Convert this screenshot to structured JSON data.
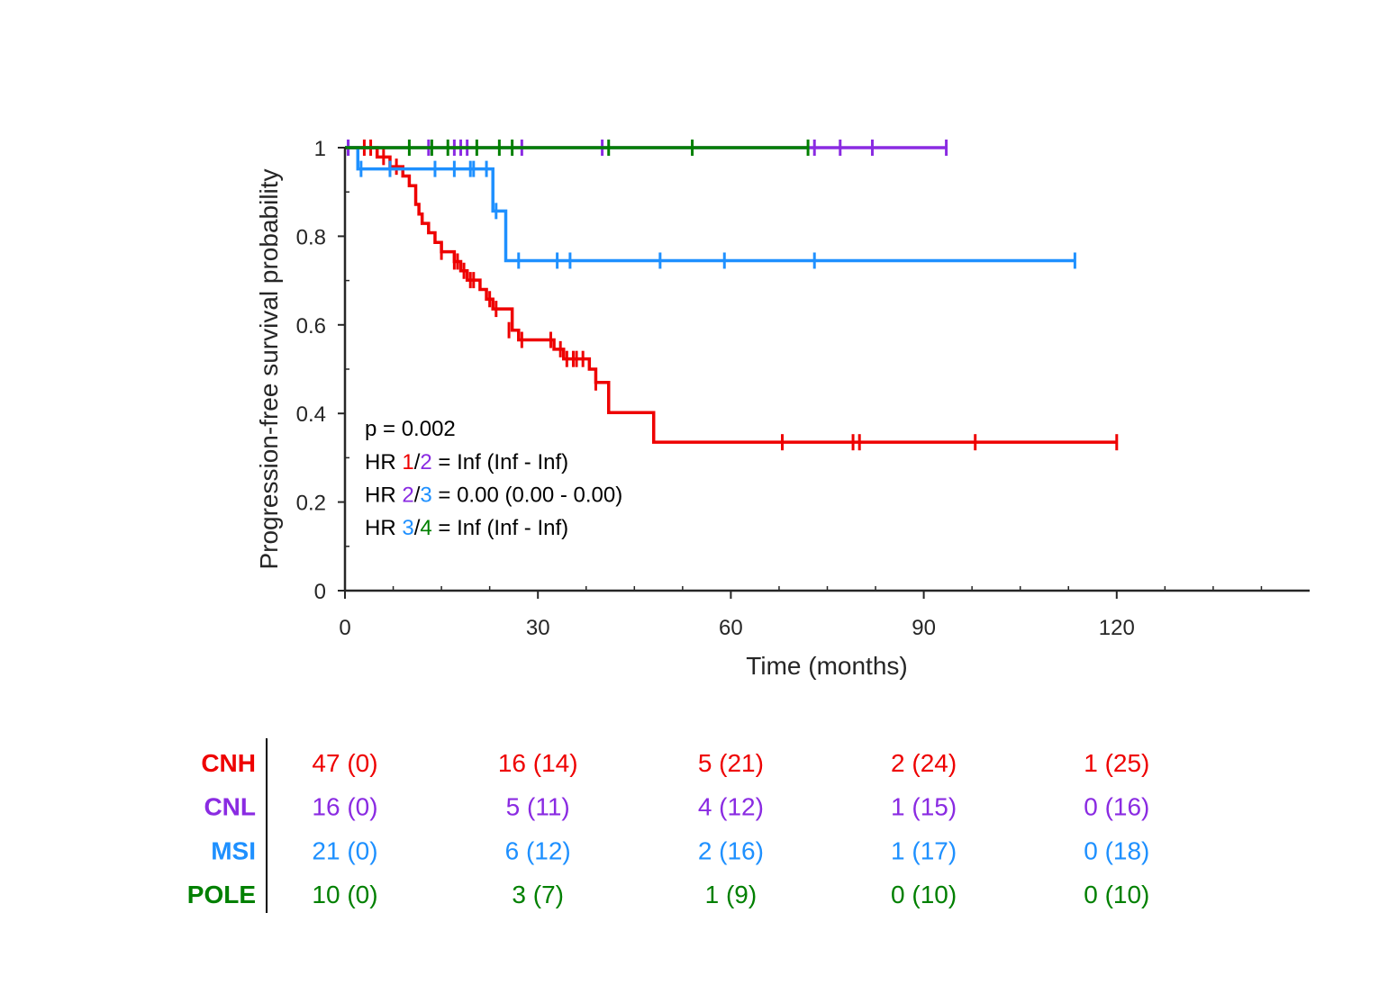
{
  "chart_data": {
    "type": "line",
    "subtype": "kaplan-meier",
    "xlabel": "Time (months)",
    "ylabel": "Progression-free survival probability",
    "xlim": [
      0,
      150
    ],
    "ylim": [
      0,
      1
    ],
    "xticks": [
      0,
      30,
      60,
      90,
      120
    ],
    "xtick_labels": [
      "0",
      "30",
      "60",
      "90",
      "120"
    ],
    "yticks": [
      0,
      0.2,
      0.4,
      0.6,
      0.8,
      1
    ],
    "ytick_labels": [
      "0",
      "0.2",
      "0.4",
      "0.6",
      "0.8",
      "1"
    ],
    "grid": false,
    "annotations": {
      "p": "p = 0.002",
      "hr": [
        {
          "prefix": "HR ",
          "a": "1",
          "a_color": "#ee0000",
          "sep": "/",
          "b": "2",
          "b_color": "#8a2be2",
          "rest": " = Inf (Inf - Inf)"
        },
        {
          "prefix": "HR ",
          "a": "2",
          "a_color": "#8a2be2",
          "sep": "/",
          "b": "3",
          "b_color": "#1e90ff",
          "rest": " = 0.00 (0.00 - 0.00)"
        },
        {
          "prefix": "HR ",
          "a": "3",
          "a_color": "#1e90ff",
          "sep": "/",
          "b": "4",
          "b_color": "#008000",
          "rest": " = Inf (Inf - Inf)"
        }
      ]
    },
    "series": [
      {
        "name": "CNH",
        "color": "#ee0000",
        "steps": [
          [
            0,
            1
          ],
          [
            5,
            0.979
          ],
          [
            7,
            0.957
          ],
          [
            9,
            0.936
          ],
          [
            10,
            0.914
          ],
          [
            11,
            0.872
          ],
          [
            11.5,
            0.85
          ],
          [
            12,
            0.829
          ],
          [
            13,
            0.808
          ],
          [
            14,
            0.786
          ],
          [
            15,
            0.765
          ],
          [
            17,
            0.743
          ],
          [
            18,
            0.722
          ],
          [
            19,
            0.701
          ],
          [
            21,
            0.68
          ],
          [
            22,
            0.658
          ],
          [
            23,
            0.636
          ],
          [
            26,
            0.588
          ],
          [
            27,
            0.566
          ],
          [
            32.5,
            0.545
          ],
          [
            34,
            0.523
          ],
          [
            38,
            0.5
          ],
          [
            39,
            0.47
          ],
          [
            41,
            0.402
          ],
          [
            48,
            0.335
          ],
          [
            120,
            0.335
          ]
        ],
        "censors": [
          [
            3,
            1
          ],
          [
            4,
            1
          ],
          [
            6,
            0.979
          ],
          [
            8,
            0.957
          ],
          [
            15,
            0.765
          ],
          [
            17,
            0.743
          ],
          [
            17.5,
            0.743
          ],
          [
            18.5,
            0.722
          ],
          [
            19.5,
            0.701
          ],
          [
            20,
            0.701
          ],
          [
            22.5,
            0.658
          ],
          [
            23.5,
            0.636
          ],
          [
            25.5,
            0.588
          ],
          [
            27.5,
            0.566
          ],
          [
            32,
            0.566
          ],
          [
            33.5,
            0.545
          ],
          [
            34.5,
            0.523
          ],
          [
            35.5,
            0.523
          ],
          [
            36,
            0.523
          ],
          [
            37,
            0.523
          ],
          [
            39,
            0.47
          ],
          [
            68,
            0.335
          ],
          [
            79,
            0.335
          ],
          [
            80,
            0.335
          ],
          [
            98,
            0.335
          ],
          [
            120,
            0.335
          ]
        ]
      },
      {
        "name": "CNL",
        "color": "#8a2be2",
        "steps": [
          [
            0,
            1
          ],
          [
            93.5,
            1
          ]
        ],
        "censors": [
          [
            0.5,
            1
          ],
          [
            13,
            1
          ],
          [
            17,
            1
          ],
          [
            18,
            1
          ],
          [
            19,
            1
          ],
          [
            27.5,
            1
          ],
          [
            40,
            1
          ],
          [
            73,
            1
          ],
          [
            77,
            1
          ],
          [
            82,
            1
          ],
          [
            93.5,
            1
          ]
        ]
      },
      {
        "name": "MSI",
        "color": "#1e90ff",
        "steps": [
          [
            0,
            1
          ],
          [
            2,
            0.952
          ],
          [
            23,
            0.857
          ],
          [
            25,
            0.745
          ],
          [
            113.5,
            0.745
          ]
        ],
        "censors": [
          [
            0.5,
            1
          ],
          [
            2.5,
            0.952
          ],
          [
            7,
            0.952
          ],
          [
            14,
            0.952
          ],
          [
            17,
            0.952
          ],
          [
            19.5,
            0.952
          ],
          [
            20,
            0.952
          ],
          [
            22,
            0.952
          ],
          [
            23.5,
            0.857
          ],
          [
            27,
            0.745
          ],
          [
            33,
            0.745
          ],
          [
            35,
            0.745
          ],
          [
            49,
            0.745
          ],
          [
            59,
            0.745
          ],
          [
            73,
            0.745
          ],
          [
            113.5,
            0.745
          ]
        ]
      },
      {
        "name": "POLE",
        "color": "#008000",
        "steps": [
          [
            0,
            1
          ],
          [
            72,
            1
          ]
        ],
        "censors": [
          [
            10,
            1
          ],
          [
            13.5,
            1
          ],
          [
            16,
            1
          ],
          [
            20.5,
            1
          ],
          [
            24,
            1
          ],
          [
            26,
            1
          ],
          [
            41,
            1
          ],
          [
            54,
            1
          ],
          [
            72,
            1
          ]
        ]
      }
    ]
  },
  "risk_table": {
    "times": [
      0,
      30,
      60,
      90,
      120
    ],
    "rows": [
      {
        "name": "CNH",
        "color": "#ee0000",
        "cells": [
          "47 (0)",
          "16 (14)",
          "5 (21)",
          "2 (24)",
          "1 (25)"
        ]
      },
      {
        "name": "CNL",
        "color": "#8a2be2",
        "cells": [
          "16 (0)",
          "5 (11)",
          "4 (12)",
          "1 (15)",
          "0 (16)"
        ]
      },
      {
        "name": "MSI",
        "color": "#1e90ff",
        "cells": [
          "21 (0)",
          "6 (12)",
          "2 (16)",
          "1 (17)",
          "0 (18)"
        ]
      },
      {
        "name": "POLE",
        "color": "#008000",
        "cells": [
          "10 (0)",
          "3 (7)",
          "1 (9)",
          "0 (10)",
          "0 (10)"
        ]
      }
    ]
  }
}
